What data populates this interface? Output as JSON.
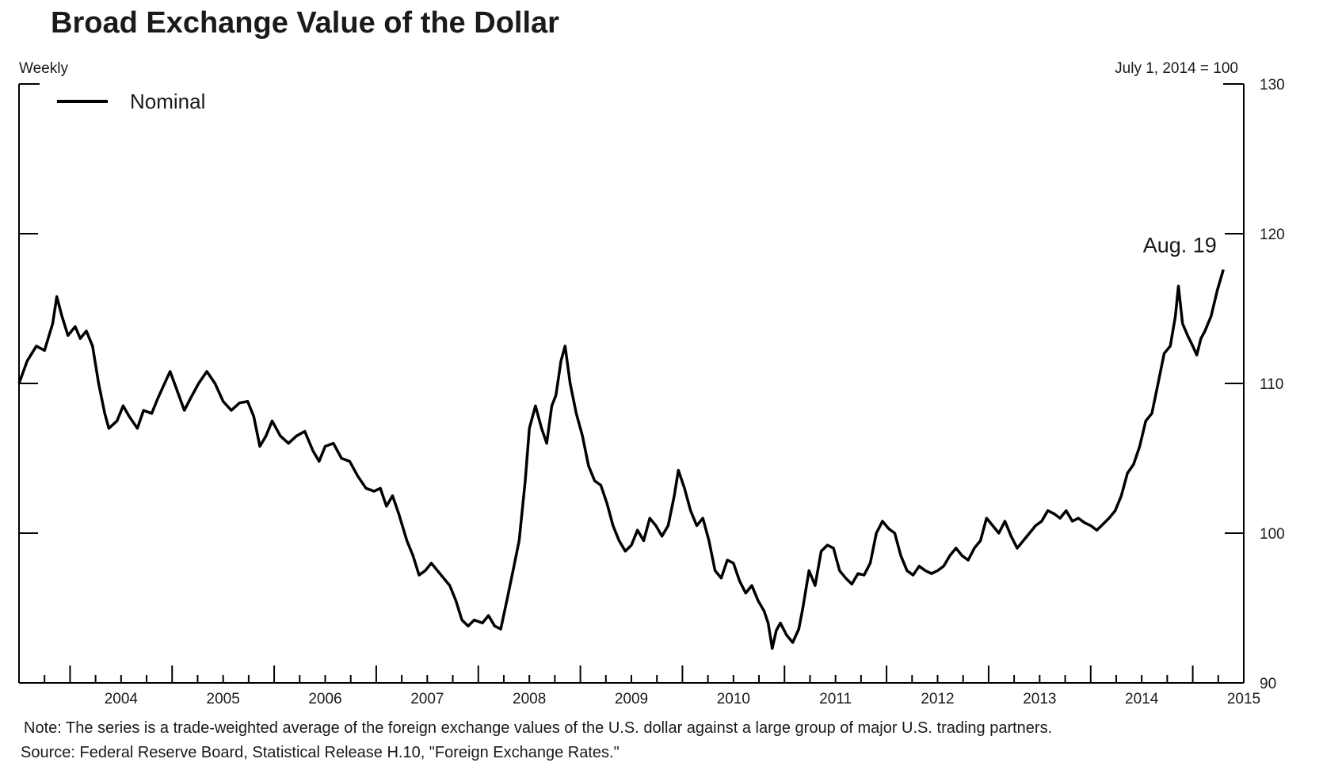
{
  "chart_data": {
    "type": "line",
    "title": "Broad Exchange Value of the Dollar",
    "frequency_label": "Weekly",
    "index_label": "July 1, 2014 = 100",
    "legend_placement": "top-left",
    "series": [
      {
        "name": "Nominal",
        "color": "#000000",
        "points": [
          [
            2003.5,
            110.0
          ],
          [
            2003.58,
            111.5
          ],
          [
            2003.67,
            112.5
          ],
          [
            2003.75,
            112.2
          ],
          [
            2003.83,
            114.0
          ],
          [
            2003.87,
            115.8
          ],
          [
            2003.92,
            114.5
          ],
          [
            2003.98,
            113.2
          ],
          [
            2004.05,
            113.8
          ],
          [
            2004.1,
            113.0
          ],
          [
            2004.16,
            113.5
          ],
          [
            2004.22,
            112.5
          ],
          [
            2004.28,
            110.0
          ],
          [
            2004.34,
            108.0
          ],
          [
            2004.38,
            107.0
          ],
          [
            2004.46,
            107.5
          ],
          [
            2004.52,
            108.5
          ],
          [
            2004.58,
            107.8
          ],
          [
            2004.66,
            107.0
          ],
          [
            2004.72,
            108.2
          ],
          [
            2004.8,
            108.0
          ],
          [
            2004.86,
            109.0
          ],
          [
            2004.94,
            110.2
          ],
          [
            2004.98,
            110.8
          ],
          [
            2005.05,
            109.5
          ],
          [
            2005.12,
            108.2
          ],
          [
            2005.18,
            109.0
          ],
          [
            2005.26,
            110.0
          ],
          [
            2005.34,
            110.8
          ],
          [
            2005.42,
            110.0
          ],
          [
            2005.5,
            108.8
          ],
          [
            2005.58,
            108.2
          ],
          [
            2005.66,
            108.7
          ],
          [
            2005.74,
            108.8
          ],
          [
            2005.8,
            107.8
          ],
          [
            2005.86,
            105.8
          ],
          [
            2005.92,
            106.5
          ],
          [
            2005.98,
            107.5
          ],
          [
            2006.06,
            106.5
          ],
          [
            2006.14,
            106.0
          ],
          [
            2006.22,
            106.5
          ],
          [
            2006.3,
            106.8
          ],
          [
            2006.38,
            105.5
          ],
          [
            2006.44,
            104.8
          ],
          [
            2006.5,
            105.8
          ],
          [
            2006.58,
            106.0
          ],
          [
            2006.66,
            105.0
          ],
          [
            2006.74,
            104.8
          ],
          [
            2006.82,
            103.8
          ],
          [
            2006.9,
            103.0
          ],
          [
            2006.98,
            102.8
          ],
          [
            2007.04,
            103.0
          ],
          [
            2007.1,
            101.8
          ],
          [
            2007.16,
            102.5
          ],
          [
            2007.22,
            101.3
          ],
          [
            2007.3,
            99.5
          ],
          [
            2007.36,
            98.5
          ],
          [
            2007.42,
            97.2
          ],
          [
            2007.48,
            97.5
          ],
          [
            2007.54,
            98.0
          ],
          [
            2007.6,
            97.5
          ],
          [
            2007.66,
            97.0
          ],
          [
            2007.72,
            96.5
          ],
          [
            2007.78,
            95.5
          ],
          [
            2007.84,
            94.2
          ],
          [
            2007.9,
            93.8
          ],
          [
            2007.96,
            94.2
          ],
          [
            2008.04,
            94.0
          ],
          [
            2008.1,
            94.5
          ],
          [
            2008.16,
            93.8
          ],
          [
            2008.22,
            93.6
          ],
          [
            2008.28,
            95.5
          ],
          [
            2008.34,
            97.5
          ],
          [
            2008.4,
            99.5
          ],
          [
            2008.46,
            103.5
          ],
          [
            2008.5,
            107.0
          ],
          [
            2008.56,
            108.5
          ],
          [
            2008.62,
            107.0
          ],
          [
            2008.67,
            106.0
          ],
          [
            2008.72,
            108.5
          ],
          [
            2008.76,
            109.2
          ],
          [
            2008.81,
            111.5
          ],
          [
            2008.85,
            112.5
          ],
          [
            2008.9,
            110.0
          ],
          [
            2008.96,
            108.0
          ],
          [
            2009.02,
            106.5
          ],
          [
            2009.08,
            104.5
          ],
          [
            2009.14,
            103.5
          ],
          [
            2009.2,
            103.2
          ],
          [
            2009.26,
            102.0
          ],
          [
            2009.32,
            100.5
          ],
          [
            2009.38,
            99.5
          ],
          [
            2009.44,
            98.8
          ],
          [
            2009.5,
            99.2
          ],
          [
            2009.56,
            100.2
          ],
          [
            2009.62,
            99.5
          ],
          [
            2009.68,
            101.0
          ],
          [
            2009.74,
            100.5
          ],
          [
            2009.8,
            99.8
          ],
          [
            2009.86,
            100.5
          ],
          [
            2009.92,
            102.5
          ],
          [
            2009.96,
            104.2
          ],
          [
            2010.02,
            103.0
          ],
          [
            2010.08,
            101.5
          ],
          [
            2010.14,
            100.5
          ],
          [
            2010.2,
            101.0
          ],
          [
            2010.26,
            99.5
          ],
          [
            2010.32,
            97.5
          ],
          [
            2010.38,
            97.0
          ],
          [
            2010.44,
            98.2
          ],
          [
            2010.5,
            98.0
          ],
          [
            2010.56,
            96.8
          ],
          [
            2010.62,
            96.0
          ],
          [
            2010.68,
            96.5
          ],
          [
            2010.74,
            95.5
          ],
          [
            2010.8,
            94.8
          ],
          [
            2010.84,
            94.0
          ],
          [
            2010.88,
            92.3
          ],
          [
            2010.92,
            93.5
          ],
          [
            2010.96,
            94.0
          ],
          [
            2011.02,
            93.2
          ],
          [
            2011.08,
            92.7
          ],
          [
            2011.14,
            93.6
          ],
          [
            2011.18,
            95.0
          ],
          [
            2011.24,
            97.5
          ],
          [
            2011.3,
            96.5
          ],
          [
            2011.36,
            98.8
          ],
          [
            2011.42,
            99.2
          ],
          [
            2011.48,
            99.0
          ],
          [
            2011.54,
            97.5
          ],
          [
            2011.6,
            97.0
          ],
          [
            2011.66,
            96.6
          ],
          [
            2011.72,
            97.3
          ],
          [
            2011.78,
            97.2
          ],
          [
            2011.84,
            98.0
          ],
          [
            2011.9,
            100.0
          ],
          [
            2011.96,
            100.8
          ],
          [
            2012.02,
            100.3
          ],
          [
            2012.08,
            100.0
          ],
          [
            2012.14,
            98.5
          ],
          [
            2012.2,
            97.5
          ],
          [
            2012.26,
            97.2
          ],
          [
            2012.32,
            97.8
          ],
          [
            2012.38,
            97.5
          ],
          [
            2012.44,
            97.3
          ],
          [
            2012.5,
            97.5
          ],
          [
            2012.56,
            97.8
          ],
          [
            2012.62,
            98.5
          ],
          [
            2012.68,
            99.0
          ],
          [
            2012.74,
            98.5
          ],
          [
            2012.8,
            98.2
          ],
          [
            2012.86,
            99.0
          ],
          [
            2012.92,
            99.5
          ],
          [
            2012.98,
            101.0
          ],
          [
            2013.04,
            100.5
          ],
          [
            2013.1,
            100.0
          ],
          [
            2013.16,
            100.8
          ],
          [
            2013.22,
            99.8
          ],
          [
            2013.28,
            99.0
          ],
          [
            2013.34,
            99.5
          ],
          [
            2013.4,
            100.0
          ],
          [
            2013.46,
            100.5
          ],
          [
            2013.52,
            100.8
          ],
          [
            2013.58,
            101.5
          ],
          [
            2013.64,
            101.3
          ],
          [
            2013.7,
            101.0
          ],
          [
            2013.76,
            101.5
          ],
          [
            2013.82,
            100.8
          ],
          [
            2013.88,
            101.0
          ],
          [
            2013.94,
            100.7
          ],
          [
            2014.0,
            100.5
          ],
          [
            2014.06,
            100.2
          ],
          [
            2014.12,
            100.6
          ],
          [
            2014.18,
            101.0
          ],
          [
            2014.24,
            101.5
          ],
          [
            2014.3,
            102.5
          ],
          [
            2014.36,
            104.0
          ],
          [
            2014.42,
            104.6
          ],
          [
            2014.48,
            105.8
          ],
          [
            2014.54,
            107.5
          ],
          [
            2014.6,
            108.0
          ],
          [
            2014.66,
            110.0
          ],
          [
            2014.72,
            112.0
          ],
          [
            2014.78,
            112.5
          ],
          [
            2014.83,
            114.5
          ],
          [
            2014.86,
            116.5
          ],
          [
            2014.9,
            114.0
          ],
          [
            2014.95,
            113.2
          ],
          [
            2015.0,
            112.5
          ],
          [
            2015.04,
            111.9
          ],
          [
            2015.08,
            113.0
          ],
          [
            2015.12,
            113.5
          ],
          [
            2015.18,
            114.5
          ],
          [
            2015.24,
            116.2
          ],
          [
            2015.3,
            117.6
          ]
        ]
      }
    ],
    "xlim": [
      2003.5,
      2015.5
    ],
    "ylim": [
      90,
      130
    ],
    "x_ticks": [
      "2004",
      "2005",
      "2006",
      "2007",
      "2008",
      "2009",
      "2010",
      "2011",
      "2012",
      "2013",
      "2014",
      "2015"
    ],
    "y_ticks": [
      "90",
      "100",
      "110",
      "120",
      "130"
    ],
    "y_axis_side": "right",
    "grid": false,
    "annotations": [
      {
        "text": "Aug. 19",
        "x": 2015.3,
        "y": 117.6
      }
    ],
    "note": "Note:  The series is a trade-weighted average of the foreign exchange values of the U.S. dollar against a large group of major U.S. trading partners.",
    "source": "Source:  Federal Reserve Board, Statistical Release H.10, \"Foreign Exchange Rates.\""
  }
}
